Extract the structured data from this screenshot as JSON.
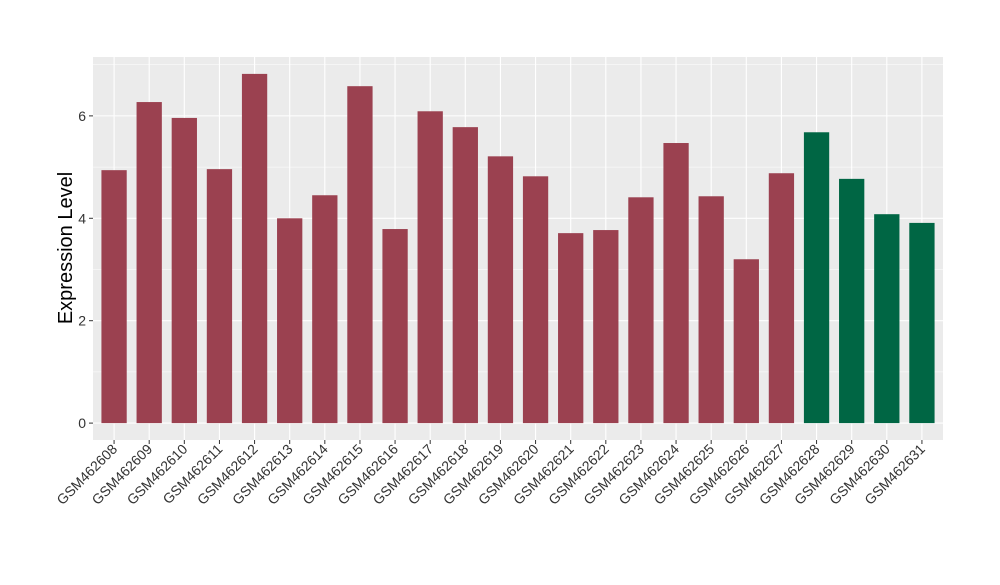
{
  "chart_data": {
    "type": "bar",
    "title": "",
    "xlabel": "",
    "ylabel": "Expression Level",
    "ylim": [
      -0.33,
      7.15
    ],
    "yticks": [
      0,
      2,
      4,
      6
    ],
    "grid": true,
    "categories": [
      "GSM462608",
      "GSM462609",
      "GSM462610",
      "GSM462611",
      "GSM462612",
      "GSM462613",
      "GSM462614",
      "GSM462615",
      "GSM462616",
      "GSM462617",
      "GSM462618",
      "GSM462619",
      "GSM462620",
      "GSM462621",
      "GSM462622",
      "GSM462623",
      "GSM462624",
      "GSM462625",
      "GSM462626",
      "GSM462627",
      "GSM462628",
      "GSM462629",
      "GSM462630",
      "GSM462631"
    ],
    "values": [
      4.94,
      6.27,
      5.96,
      4.96,
      6.82,
      4.0,
      4.45,
      6.58,
      3.79,
      6.09,
      5.78,
      5.21,
      4.82,
      3.71,
      3.77,
      4.41,
      5.47,
      4.43,
      3.2,
      4.88,
      5.68,
      4.77,
      4.08,
      3.91
    ],
    "groups": [
      "a",
      "a",
      "a",
      "a",
      "a",
      "a",
      "a",
      "a",
      "a",
      "a",
      "a",
      "a",
      "a",
      "a",
      "a",
      "a",
      "a",
      "a",
      "a",
      "a",
      "b",
      "b",
      "b",
      "b"
    ],
    "colors": {
      "a": "#9b4150",
      "b": "#006644",
      "panel": "#ebebeb",
      "grid": "#ffffff"
    }
  }
}
